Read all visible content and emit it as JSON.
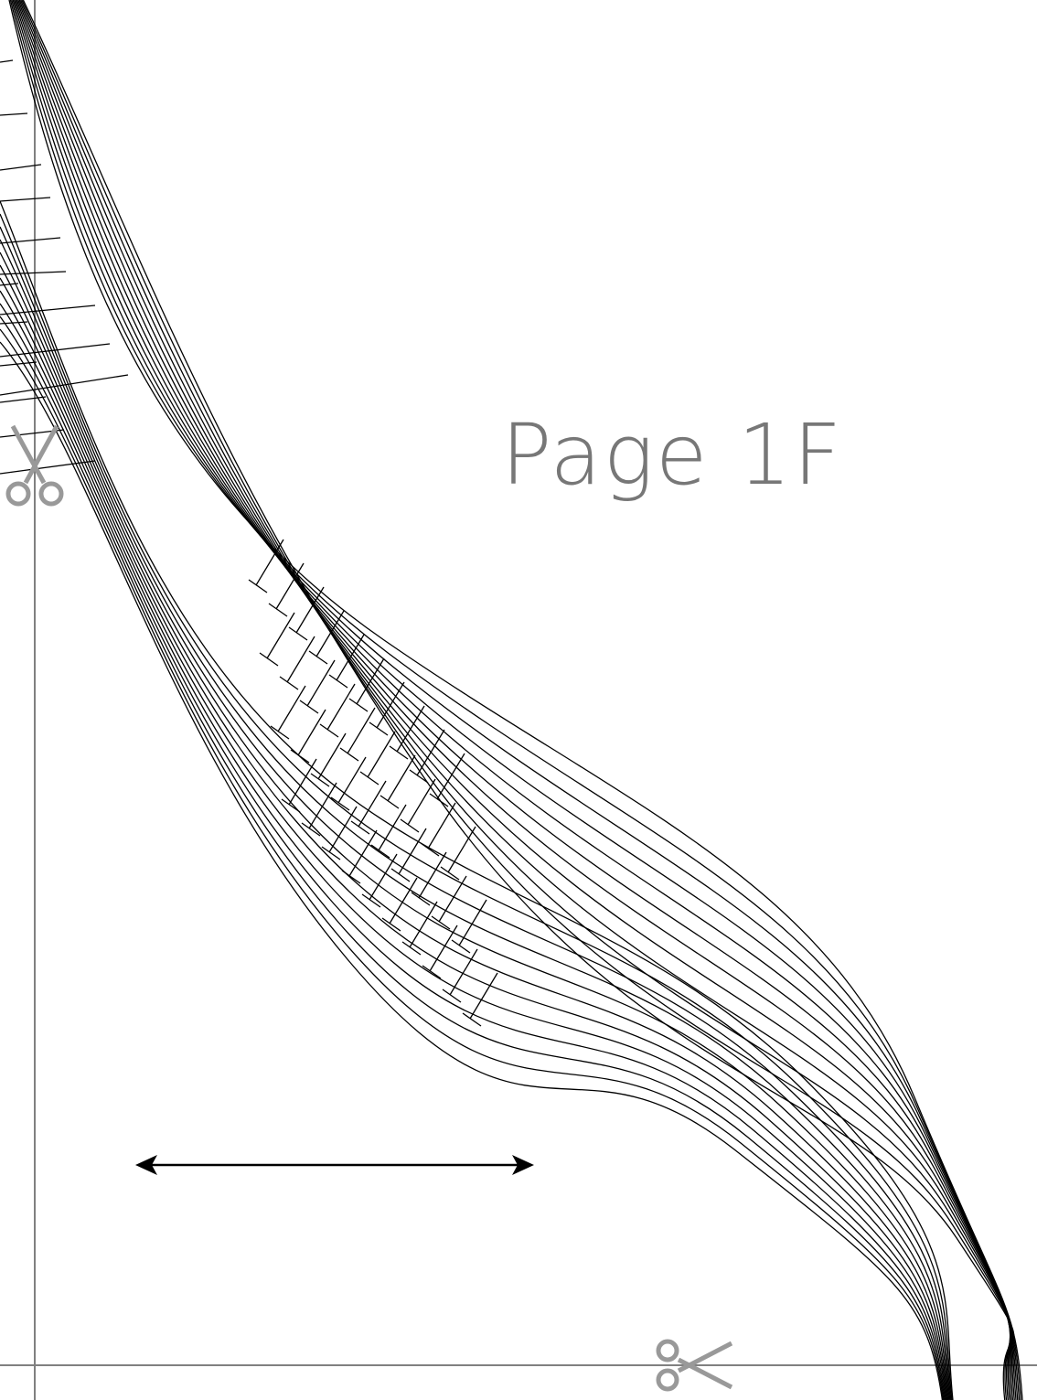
{
  "page": {
    "label": "Page 1F"
  },
  "icons": {
    "cut_mark_left": "scissors-icon",
    "cut_mark_bottom": "scissors-icon",
    "grainline": "double-arrow-icon"
  },
  "colors": {
    "pattern_lines": "#000000",
    "cut_guides": "#808080",
    "label_text": "#777777"
  }
}
